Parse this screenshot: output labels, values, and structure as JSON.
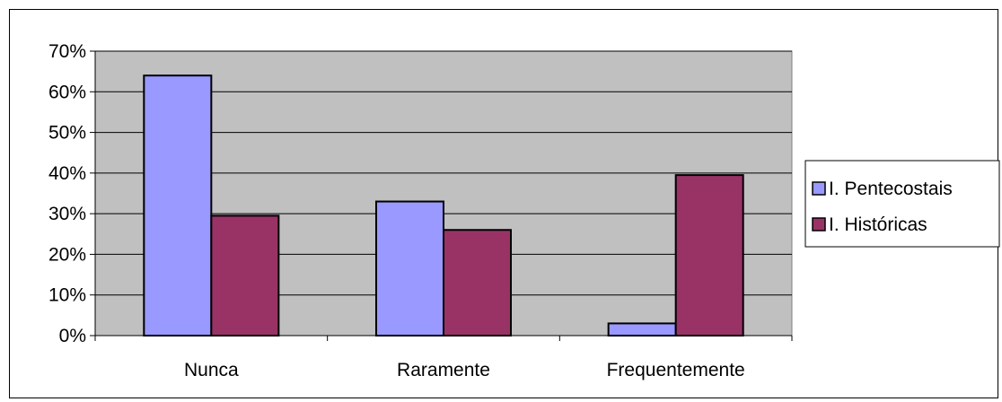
{
  "chart_data": {
    "type": "bar",
    "categories": [
      "Nunca",
      "Raramente",
      "Frequentemente"
    ],
    "series": [
      {
        "name": "I. Pentecostais",
        "values": [
          64,
          33,
          3
        ]
      },
      {
        "name": "I. Históricas",
        "values": [
          29.5,
          26,
          39.5
        ]
      }
    ],
    "title": "",
    "xlabel": "",
    "ylabel": "",
    "ylim": [
      0,
      70
    ],
    "yticks": [
      0,
      10,
      20,
      30,
      40,
      50,
      60,
      70
    ],
    "ytick_labels": [
      "0%",
      "10%",
      "20%",
      "30%",
      "40%",
      "50%",
      "60%",
      "70%"
    ],
    "grid": true,
    "legend_position": "right",
    "colors": {
      "series": [
        "#9999ff",
        "#993366"
      ],
      "plot_background": "#c0c0c0",
      "gridline": "#000000",
      "bar_edge": "#000000"
    }
  }
}
